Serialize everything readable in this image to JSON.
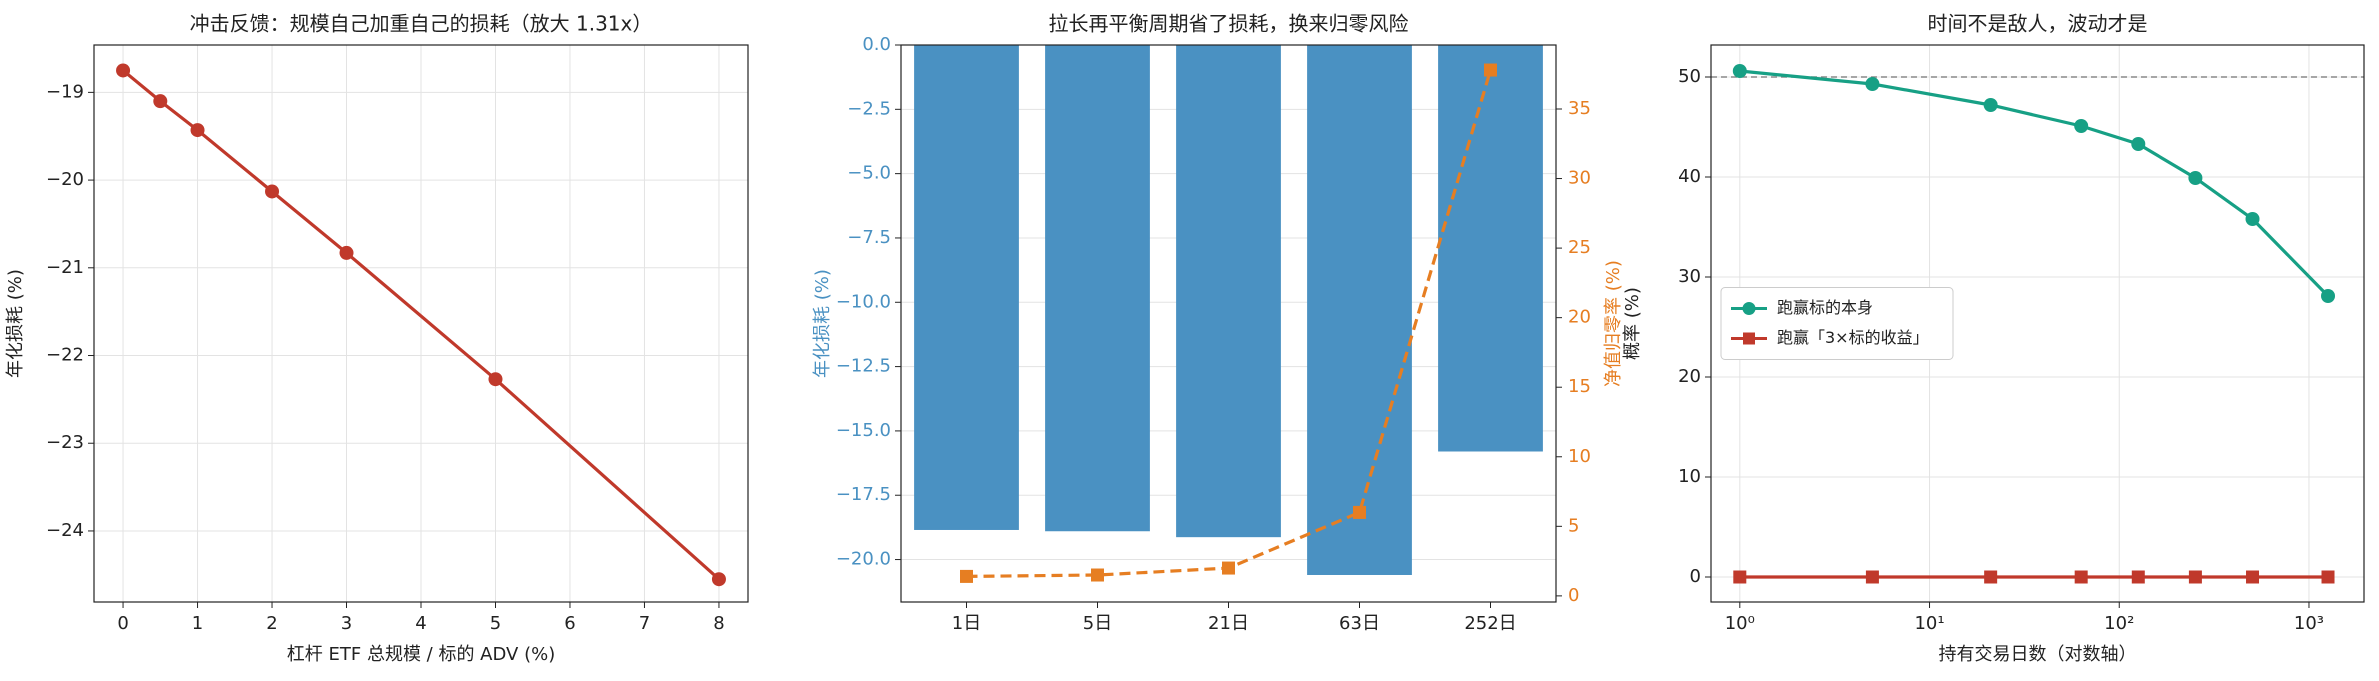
{
  "chart_data": [
    {
      "type": "line",
      "title": "冲击反馈：规模自己加重自己的损耗（放大 1.31x）",
      "xlabel": "杠杆 ETF 总规模 / 标的 ADV (%)",
      "ylabel": "年化损耗 (%)",
      "x": [
        0,
        0.5,
        1,
        2,
        3,
        5,
        8
      ],
      "values": [
        -18.75,
        -19.1,
        -19.43,
        -20.13,
        -20.83,
        -22.27,
        -24.55
      ],
      "color": "#c0392b",
      "marker": "circle",
      "xlim": [
        -0.39,
        8.39
      ],
      "ylim": [
        -24.81,
        -18.46
      ],
      "xticks": [
        0,
        1,
        2,
        3,
        4,
        5,
        6,
        7,
        8
      ],
      "yticks": [
        {
          "value": -24,
          "label": "−24"
        },
        {
          "value": -23,
          "label": "−23"
        },
        {
          "value": -22,
          "label": "−22"
        },
        {
          "value": -21,
          "label": "−21"
        },
        {
          "value": -20,
          "label": "−20"
        },
        {
          "value": -19,
          "label": "−19"
        }
      ],
      "grid": true
    },
    {
      "type": "bar",
      "title": "拉长再平衡周期省了损耗，换来归零风险",
      "ylabel": "年化损耗 (%)",
      "y2label": "净值归零率 (%)",
      "categories": [
        "1日",
        "5日",
        "21日",
        "63日",
        "252日"
      ],
      "series": [
        {
          "type": "bar",
          "color": "#4a91c2",
          "values": [
            -18.85,
            -18.9,
            -19.13,
            -20.6,
            -15.8
          ]
        },
        {
          "type": "line",
          "axis": "y2",
          "color": "#e67e22",
          "marker": "square",
          "linestyle": "dashed",
          "values": [
            1.4,
            1.5,
            2.0,
            6.0,
            37.8
          ]
        }
      ],
      "ylim": [
        -21.65,
        0
      ],
      "y2lim": [
        -0.44,
        39.6
      ],
      "yticks": [
        {
          "value": -20,
          "label": "−20.0"
        },
        {
          "value": -17.5,
          "label": "−17.5"
        },
        {
          "value": -15,
          "label": "−15.0"
        },
        {
          "value": -12.5,
          "label": "−12.5"
        },
        {
          "value": -10,
          "label": "−10.0"
        },
        {
          "value": -7.5,
          "label": "−7.5"
        },
        {
          "value": -5,
          "label": "−5.0"
        },
        {
          "value": -2.5,
          "label": "−2.5"
        },
        {
          "value": 0,
          "label": "0.0"
        }
      ],
      "y2ticks": [
        0,
        5,
        10,
        15,
        20,
        25,
        30,
        35
      ],
      "grid": true
    },
    {
      "type": "line",
      "title": "时间不是敌人，波动才是",
      "xlabel": "持有交易日数（对数轴）",
      "ylabel": "概率 (%)",
      "xscale": "log",
      "x": [
        1,
        5,
        21,
        63,
        126,
        252,
        504,
        1260
      ],
      "series": [
        {
          "name": "跑赢标的本身",
          "color": "#17a085",
          "marker": "circle",
          "values": [
            50.6,
            49.3,
            47.2,
            45.1,
            43.3,
            39.9,
            35.8,
            28.1
          ]
        },
        {
          "name": "跑赢「3×标的收益」",
          "color": "#c0392b",
          "marker": "square",
          "values": [
            0,
            0,
            0,
            0,
            0,
            0,
            0,
            0
          ]
        }
      ],
      "hline": 50,
      "xlim": [
        0.705,
        1950
      ],
      "ylim": [
        -2.5,
        53.2
      ],
      "xticks": [
        {
          "value": 1,
          "label": "10⁰"
        },
        {
          "value": 10,
          "label": "10¹"
        },
        {
          "value": 100,
          "label": "10²"
        },
        {
          "value": 1000,
          "label": "10³"
        }
      ],
      "yticks": [
        0,
        10,
        20,
        30,
        40,
        50
      ],
      "legend": "center left",
      "grid": true
    }
  ]
}
